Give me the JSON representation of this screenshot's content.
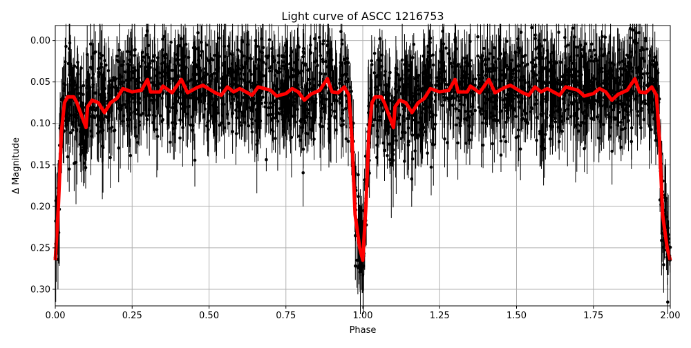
{
  "chart_data": {
    "type": "scatter",
    "title": "Light curve of ASCC 1216753",
    "xlabel": "Phase",
    "ylabel": "Δ Magnitude",
    "xlim": [
      0,
      2
    ],
    "ylim": [
      0.32,
      -0.018
    ],
    "y_inverted": true,
    "grid": true,
    "xticks": [
      "0.00",
      "0.25",
      "0.50",
      "0.75",
      "1.00",
      "1.25",
      "1.50",
      "1.75",
      "2.00"
    ],
    "yticks": [
      "0.00",
      "0.05",
      "0.10",
      "0.15",
      "0.20",
      "0.25",
      "0.30"
    ],
    "colors": {
      "points": "#000000",
      "model": "#ff0000",
      "grid": "#b0b0b0"
    },
    "series": [
      {
        "kind": "observations with error bars",
        "color": "#000000"
      },
      {
        "kind": "binned model curve",
        "color": "#ff0000",
        "repeat_period": 1,
        "x": [
          0,
          0.01,
          0.02,
          0.03,
          0.04,
          0.06,
          0.07,
          0.08,
          0.09,
          0.1,
          0.105,
          0.12,
          0.14,
          0.16,
          0.18,
          0.2,
          0.22,
          0.25,
          0.28,
          0.3,
          0.31,
          0.34,
          0.35,
          0.38,
          0.41,
          0.43,
          0.46,
          0.48,
          0.52,
          0.54,
          0.56,
          0.58,
          0.6,
          0.64,
          0.66,
          0.7,
          0.72,
          0.75,
          0.77,
          0.79,
          0.81,
          0.83,
          0.86,
          0.885,
          0.9,
          0.92,
          0.94,
          0.955,
          0.965,
          0.975,
          0.99,
          1.0
        ],
        "y": [
          0.265,
          0.2,
          0.11,
          0.075,
          0.068,
          0.068,
          0.075,
          0.085,
          0.095,
          0.105,
          0.08,
          0.072,
          0.075,
          0.087,
          0.075,
          0.07,
          0.058,
          0.062,
          0.06,
          0.047,
          0.062,
          0.062,
          0.055,
          0.063,
          0.047,
          0.063,
          0.057,
          0.054,
          0.063,
          0.066,
          0.056,
          0.062,
          0.058,
          0.066,
          0.056,
          0.06,
          0.067,
          0.064,
          0.058,
          0.062,
          0.072,
          0.065,
          0.06,
          0.046,
          0.062,
          0.063,
          0.056,
          0.066,
          0.12,
          0.21,
          0.25,
          0.265
        ]
      }
    ]
  }
}
